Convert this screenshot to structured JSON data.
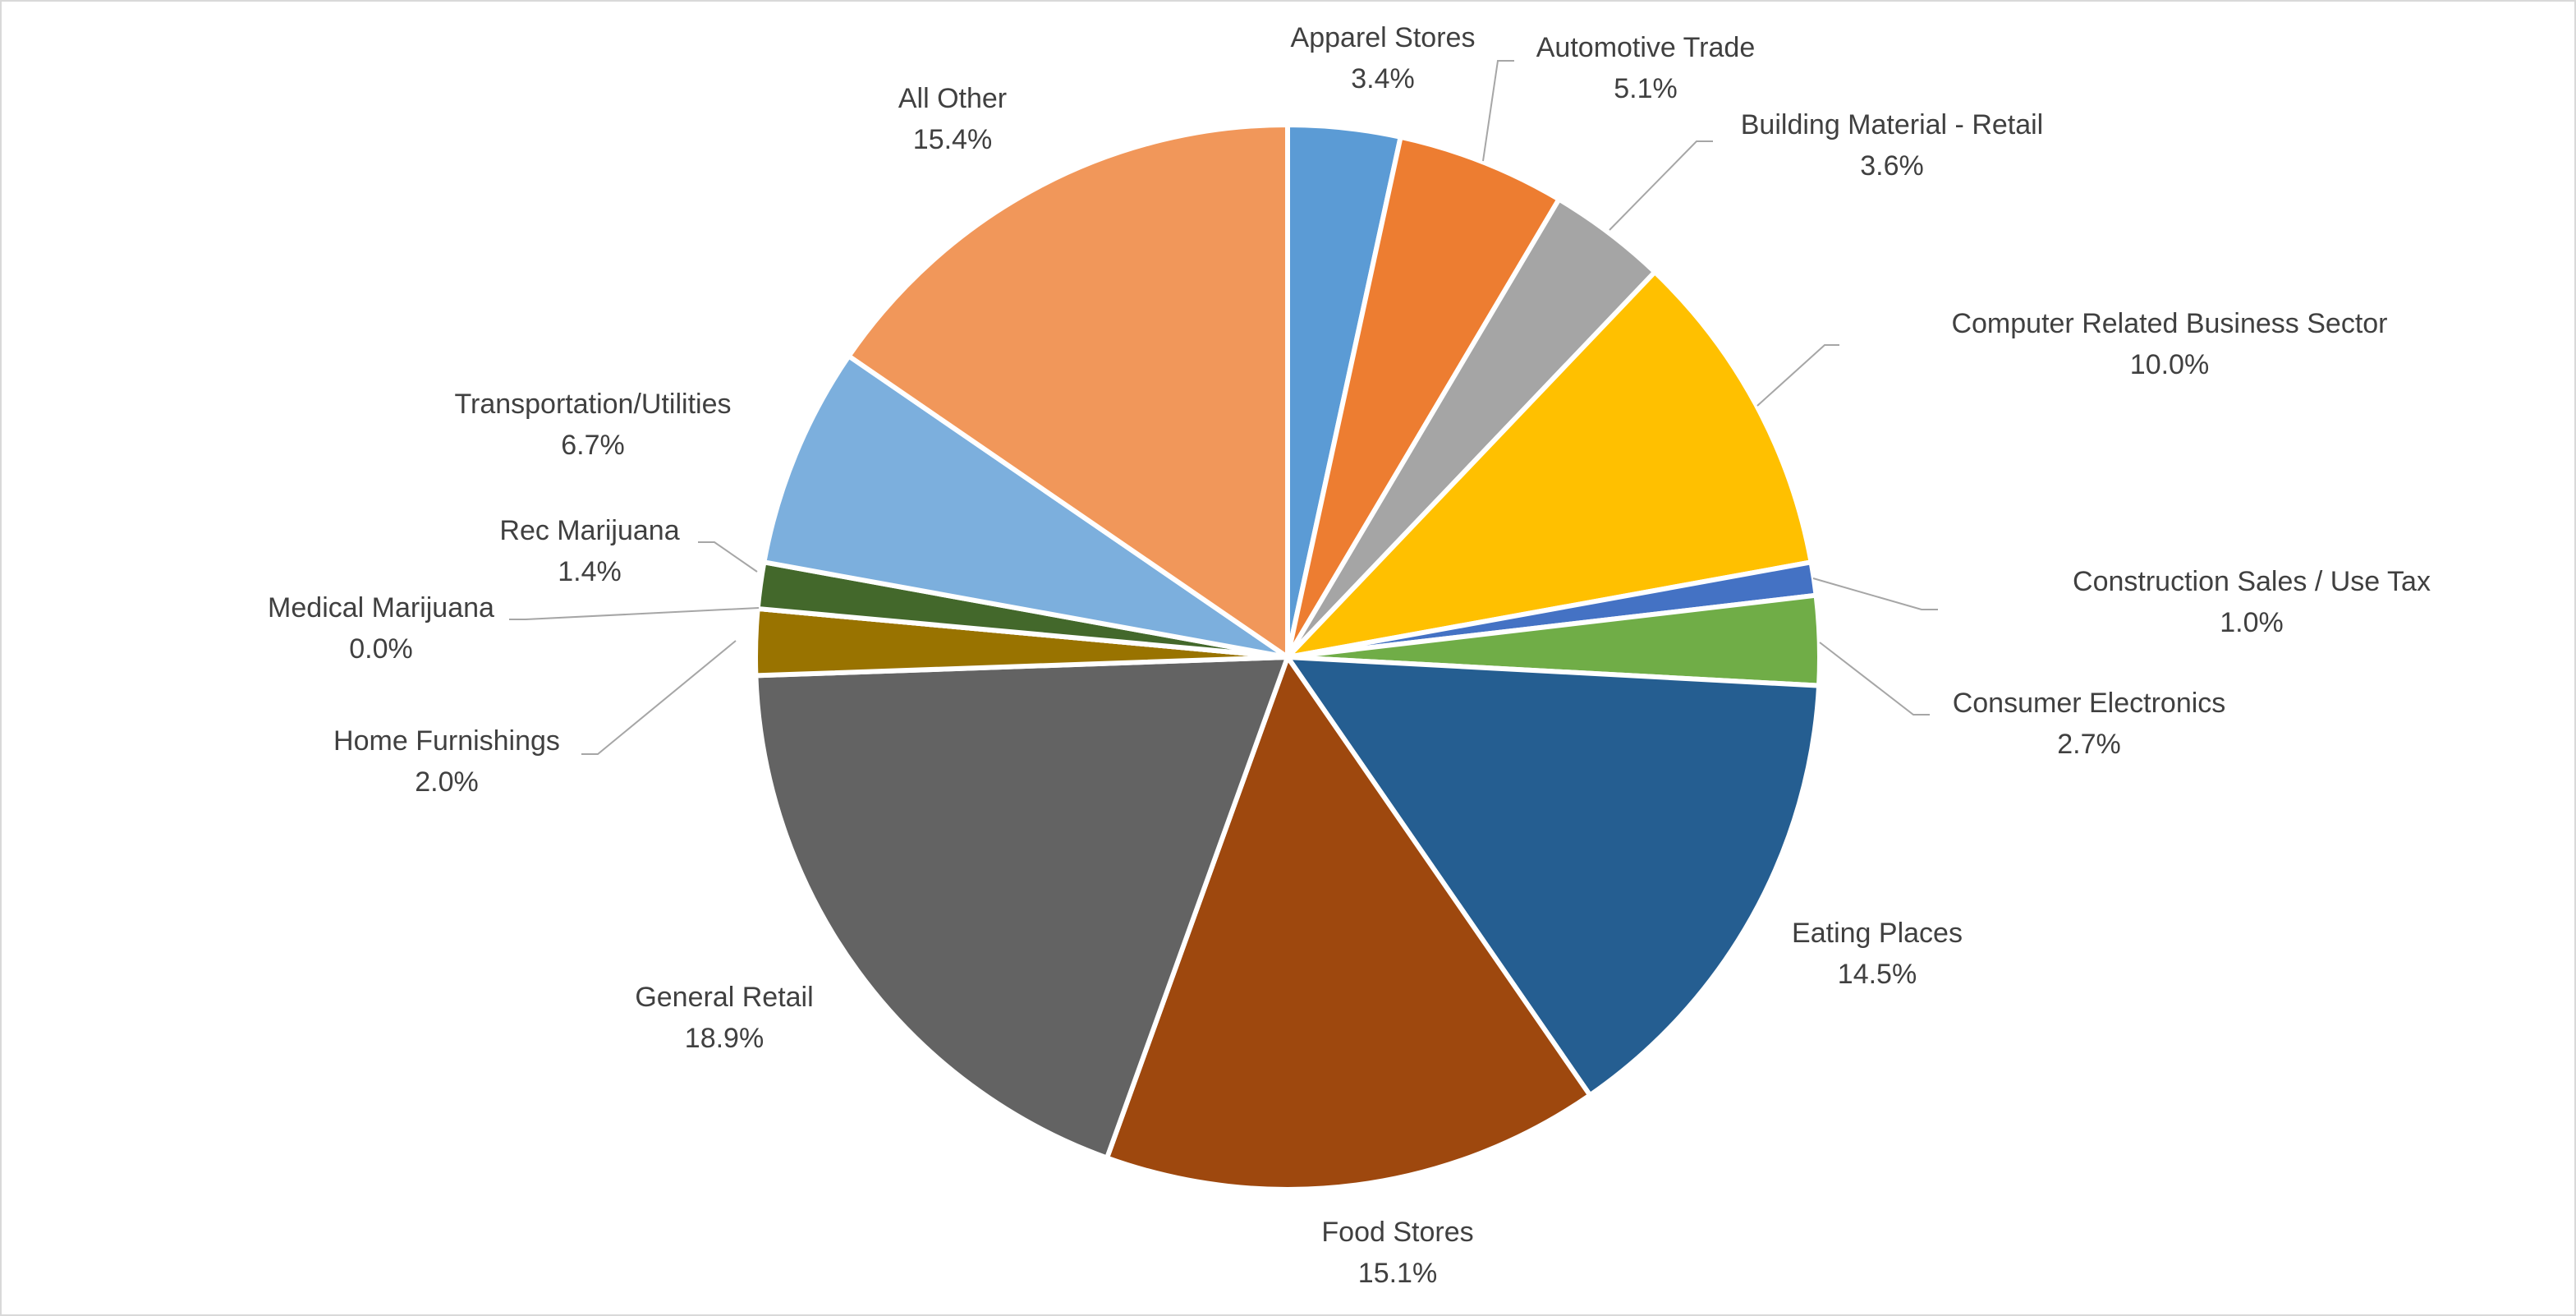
{
  "chart_data": {
    "type": "pie",
    "categories": [
      "Apparel Stores",
      "Automotive Trade",
      "Building Material - Retail",
      "Computer Related Business Sector",
      "Construction Sales / Use Tax",
      "Consumer Electronics",
      "Eating Places",
      "Food Stores",
      "General Retail",
      "Home Furnishings",
      "Medical Marijuana",
      "Rec Marijuana",
      "Transportation/Utilities",
      "All Other"
    ],
    "values": [
      3.4,
      5.1,
      3.6,
      10.0,
      1.0,
      2.7,
      14.5,
      15.1,
      18.9,
      2.0,
      0.0,
      1.4,
      6.7,
      15.4
    ],
    "value_labels": [
      "3.4%",
      "5.1%",
      "3.6%",
      "10.0%",
      "1.0%",
      "2.7%",
      "14.5%",
      "15.1%",
      "18.9%",
      "2.0%",
      "0.0%",
      "1.4%",
      "6.7%",
      "15.4%"
    ],
    "colors": [
      "#5b9bd5",
      "#ed7d31",
      "#a5a5a5",
      "#ffc000",
      "#4472c4",
      "#70ad47",
      "#255e91",
      "#9e480e",
      "#636363",
      "#997300",
      "#264478",
      "#43682b",
      "#7cafdd",
      "#f1975a"
    ]
  }
}
